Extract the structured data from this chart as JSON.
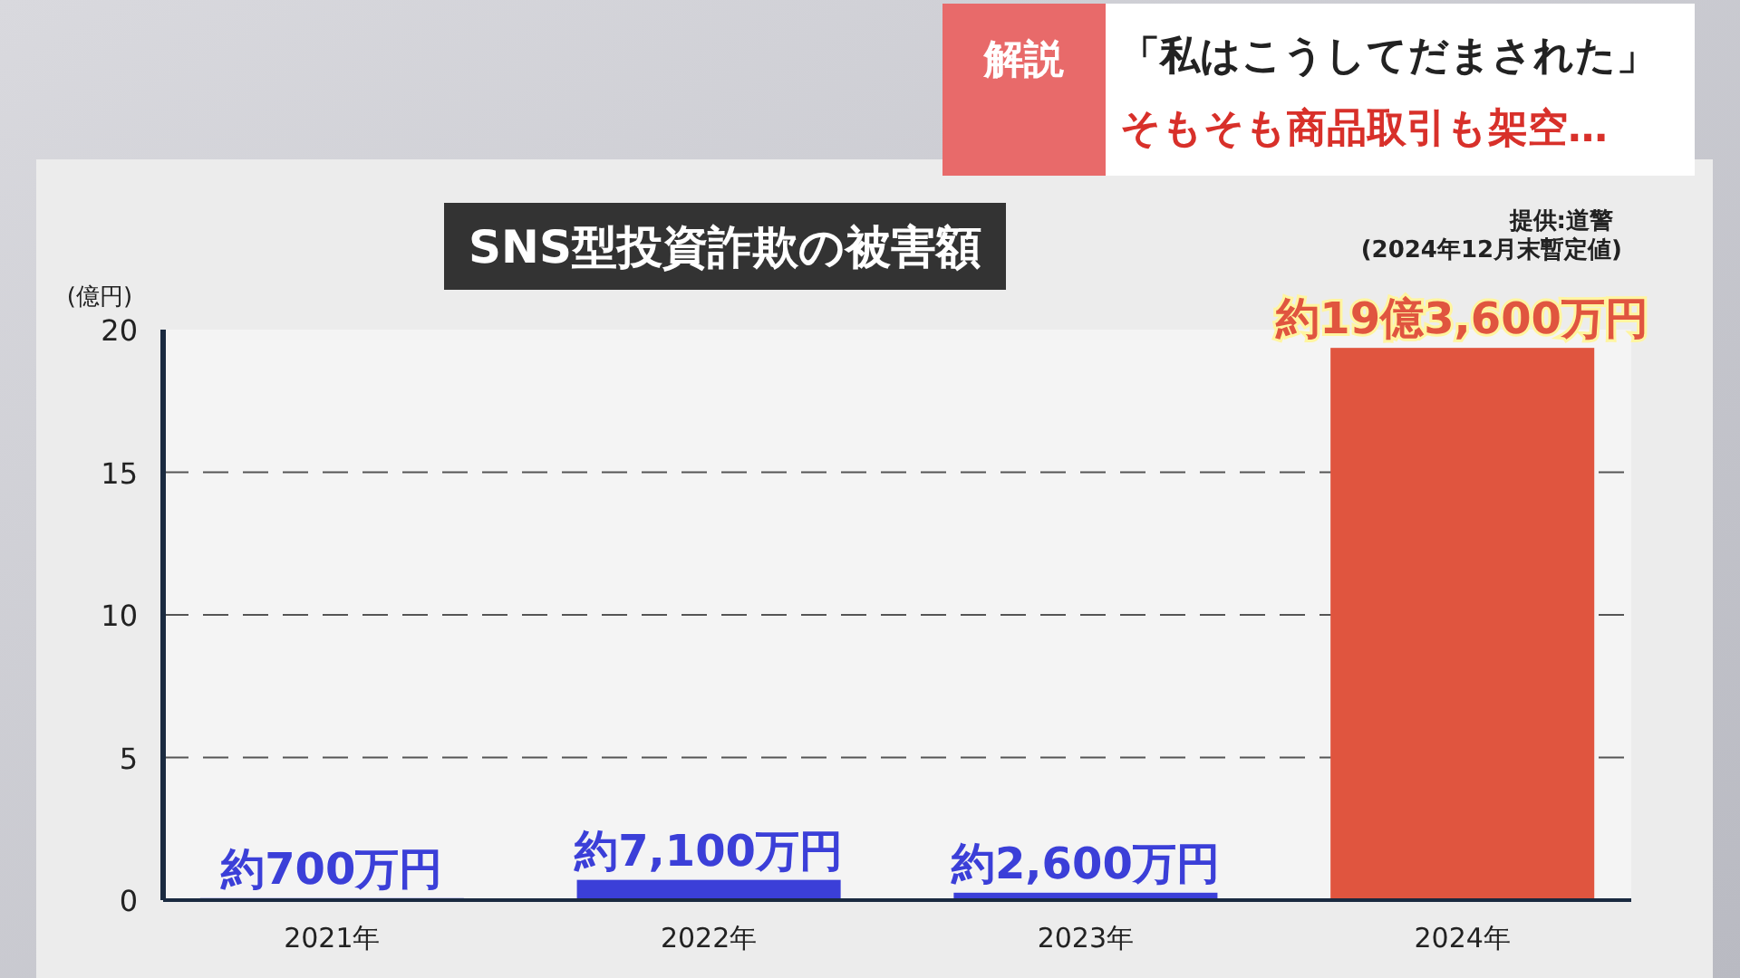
{
  "chart_data": {
    "type": "bar",
    "title": "SNS型投資詐欺の被害額",
    "ylabel": "(億円)",
    "annotations": [
      "提供:道警",
      "(2024年12月末暫定値)",
      "解説",
      "「私はこうしてだまされた」",
      "そもそも商品取引も架空…"
    ],
    "categories": [
      "2021年",
      "2022年",
      "2023年",
      "2024年"
    ],
    "values": [
      0.07,
      0.71,
      0.26,
      19.36
    ],
    "colors": [
      "#3b3fd8",
      "#3b3fd8",
      "#3b3fd8",
      "#e0553f"
    ],
    "value_labels": [
      "約700万円",
      "約7,100万円",
      "約2,600万円",
      "約19億3,600万円"
    ],
    "ylim": [
      0,
      20
    ],
    "yticks": [
      0,
      5,
      10,
      15,
      20
    ],
    "grid": "y"
  }
}
